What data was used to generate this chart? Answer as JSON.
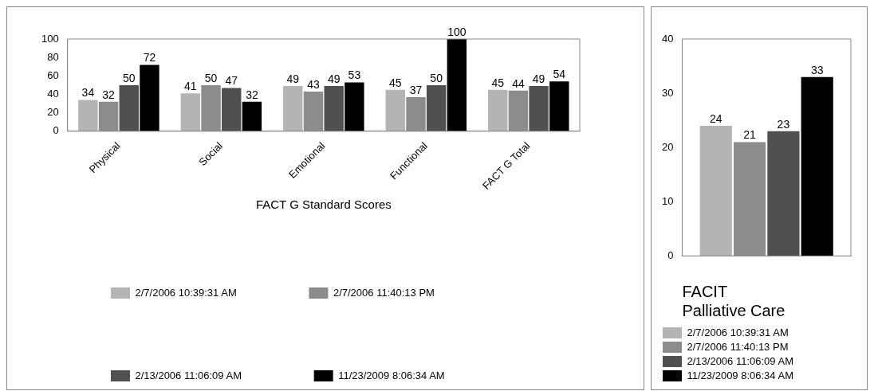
{
  "chart_data": [
    {
      "type": "bar",
      "xlabel": "FACT G Standard Scores",
      "categories": [
        "Physical",
        "Social",
        "Emotional",
        "Functional",
        "FACT G Total"
      ],
      "series": [
        {
          "name": "2/7/2006 10:39:31 AM",
          "color": "#b4b4b4",
          "values": [
            34,
            41,
            49,
            45,
            45
          ]
        },
        {
          "name": "2/7/2006 11:40:13 PM",
          "color": "#8c8c8c",
          "values": [
            32,
            50,
            43,
            37,
            44
          ]
        },
        {
          "name": "2/13/2006 11:06:09 AM",
          "color": "#505050",
          "values": [
            50,
            47,
            49,
            50,
            49
          ]
        },
        {
          "name": "11/23/2009 8:06:34 AM",
          "color": "#000000",
          "values": [
            72,
            32,
            53,
            100,
            54
          ]
        }
      ],
      "ylim": [
        0,
        100
      ],
      "yticks": [
        0,
        20,
        40,
        60,
        80,
        100
      ],
      "grid": false,
      "data_labels": true,
      "legend": "bottom"
    },
    {
      "type": "bar",
      "xlabel": "FACIT Palliative Care",
      "categories": [
        null
      ],
      "series": [
        {
          "name": "2/7/2006 10:39:31 AM",
          "color": "#b4b4b4",
          "values": [
            24
          ]
        },
        {
          "name": "2/7/2006 11:40:13 PM",
          "color": "#8c8c8c",
          "values": [
            21
          ]
        },
        {
          "name": "2/13/2006 11:06:09 AM",
          "color": "#505050",
          "values": [
            23
          ]
        },
        {
          "name": "11/23/2009 8:06:34 AM",
          "color": "#000000",
          "values": [
            33
          ]
        }
      ],
      "ylim": [
        0,
        40
      ],
      "yticks": [
        0,
        10,
        20,
        30,
        40
      ],
      "grid": false,
      "data_labels": true,
      "legend": "bottom"
    }
  ]
}
